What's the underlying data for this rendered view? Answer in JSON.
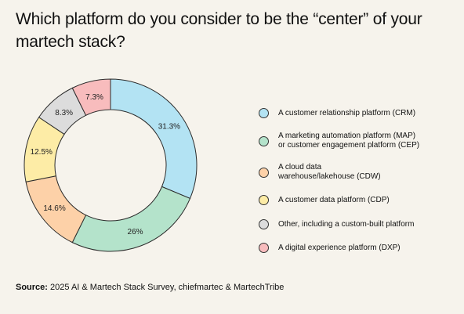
{
  "title": "Which platform do you consider to be the “center” of your martech stack?",
  "chart_data": {
    "type": "pie",
    "title": "Which platform do you consider to be the “center” of your martech stack?",
    "categories": [
      "A customer relationship platform (CRM)",
      "A marketing automation platform (MAP)\nor customer engagement platform (CEP)",
      "A cloud data\nwarehouse/lakehouse (CDW)",
      "A customer data platform (CDP)",
      "Other, including a custom-built platform",
      "A digital experience platform (DXP)"
    ],
    "values": [
      31.3,
      26,
      14.6,
      12.5,
      8.3,
      7.3
    ],
    "labels": [
      "31.3%",
      "26%",
      "14.6%",
      "12.5%",
      "8.3%",
      "7.3%"
    ],
    "colors": [
      "#b3e3f3",
      "#b4e3cb",
      "#fdd1a8",
      "#fdeca6",
      "#dcdcdc",
      "#f8bcbd"
    ],
    "legend": "right",
    "style": "donut"
  },
  "source": {
    "label": "Source:",
    "text": " 2025 AI & Martech Stack Survey, chiefmartec & MartechTribe"
  }
}
